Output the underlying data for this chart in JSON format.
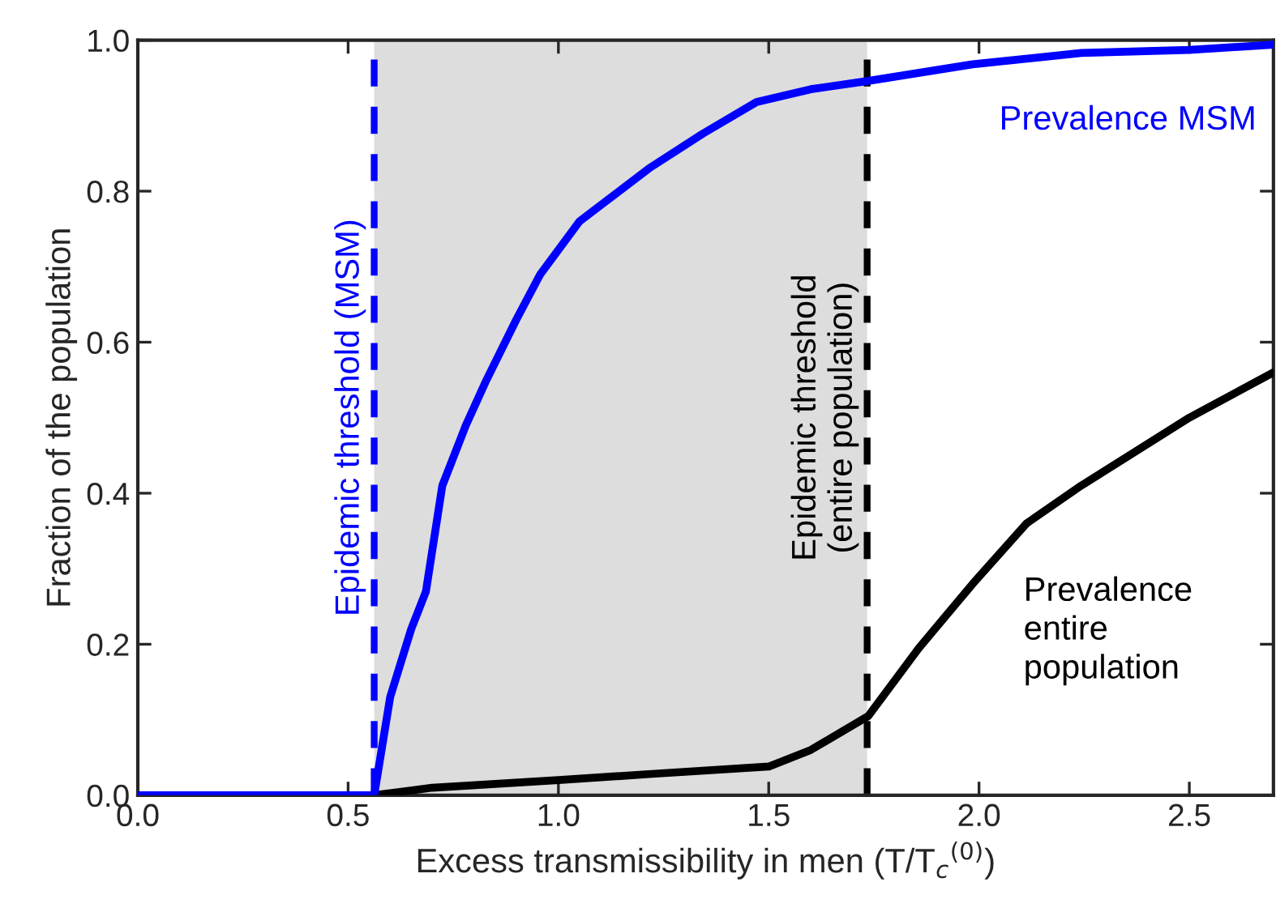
{
  "chart_data": {
    "type": "line",
    "xlabel": "Excess transmissibility in men (T/T$_{c}$$^{(0)}$)",
    "ylabel": "Fraction of the population",
    "series": [
      {
        "name": "Prevalence MSM",
        "color": "#0000ff",
        "x": [
          0,
          0.562,
          0.6,
          0.65,
          0.685,
          0.724,
          0.78,
          0.829,
          0.9,
          0.957,
          1.05,
          1.215,
          1.343,
          1.471,
          1.6,
          1.737,
          1.985,
          2.243,
          2.5,
          2.7
        ],
        "values": [
          0,
          0,
          0.13,
          0.22,
          0.27,
          0.41,
          0.49,
          0.55,
          0.63,
          0.69,
          0.76,
          0.83,
          0.876,
          0.918,
          0.935,
          0.946,
          0.968,
          0.983,
          0.987,
          0.994
        ]
      },
      {
        "name": "Prevalence entire population",
        "color": "#000000",
        "x": [
          0.562,
          0.7,
          1.0,
          1.215,
          1.5,
          1.6,
          1.737,
          1.857,
          1.985,
          2.113,
          2.243,
          2.5,
          2.7
        ],
        "values": [
          0,
          0.01,
          0.02,
          0.028,
          0.038,
          0.06,
          0.105,
          0.195,
          0.28,
          0.36,
          0.41,
          0.5,
          0.56
        ]
      }
    ],
    "xlim": [
      0,
      2.7
    ],
    "ylim": [
      0,
      1.0
    ],
    "xticks": [
      {
        "value": 0,
        "label": "0.0"
      },
      0.5,
      {
        "value": 1,
        "label": "1.0"
      },
      1.5,
      {
        "value": 2,
        "label": "2.0"
      },
      2.5
    ],
    "yticks": [
      {
        "value": 0,
        "label": "0.0"
      },
      0.2,
      0.4,
      0.6,
      0.8,
      {
        "value": 1,
        "label": "1.0"
      }
    ],
    "ref_lines": [
      {
        "axis": "x",
        "value": 0.562,
        "label": "Epidemic threshold (MSM)",
        "color": "#0000ff",
        "line_style": "dashed"
      },
      {
        "axis": "x",
        "value": 1.734,
        "label": "Epidemic threshold\n(entire population)",
        "color": "#000000",
        "line_style": "dashed"
      }
    ],
    "bands": [
      {
        "axis": "x",
        "from": 0.562,
        "to": 1.734,
        "color": "#dddddd"
      }
    ],
    "grid": false,
    "legend": false,
    "line_style": "solid",
    "marker": "none"
  }
}
